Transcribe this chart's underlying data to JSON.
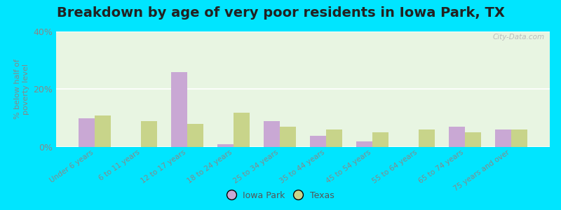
{
  "title": "Breakdown by age of very poor residents in Iowa Park, TX",
  "ylabel": "% below half of\npoverty level",
  "categories": [
    "Under 6 years",
    "6 to 11 years",
    "12 to 17 years",
    "18 to 24 years",
    "25 to 34 years",
    "35 to 44 years",
    "45 to 54 years",
    "55 to 64 years",
    "65 to 74 years",
    "75 years and over"
  ],
  "iowa_park": [
    10.0,
    0.0,
    26.0,
    1.0,
    9.0,
    4.0,
    2.0,
    0.0,
    7.0,
    6.0
  ],
  "texas": [
    11.0,
    9.0,
    8.0,
    12.0,
    7.0,
    6.0,
    5.0,
    6.0,
    5.0,
    6.0
  ],
  "iowa_park_color": "#c9a8d4",
  "texas_color": "#c8d48a",
  "plot_bg_color": "#e8f5e2",
  "outer_background": "#00e5ff",
  "ylim": [
    0,
    40
  ],
  "yticks": [
    0,
    20,
    40
  ],
  "ytick_labels": [
    "0%",
    "20%",
    "40%"
  ],
  "bar_width": 0.35,
  "title_fontsize": 14,
  "legend_iowa_label": "Iowa Park",
  "legend_texas_label": "Texas",
  "watermark": "City-Data.com"
}
